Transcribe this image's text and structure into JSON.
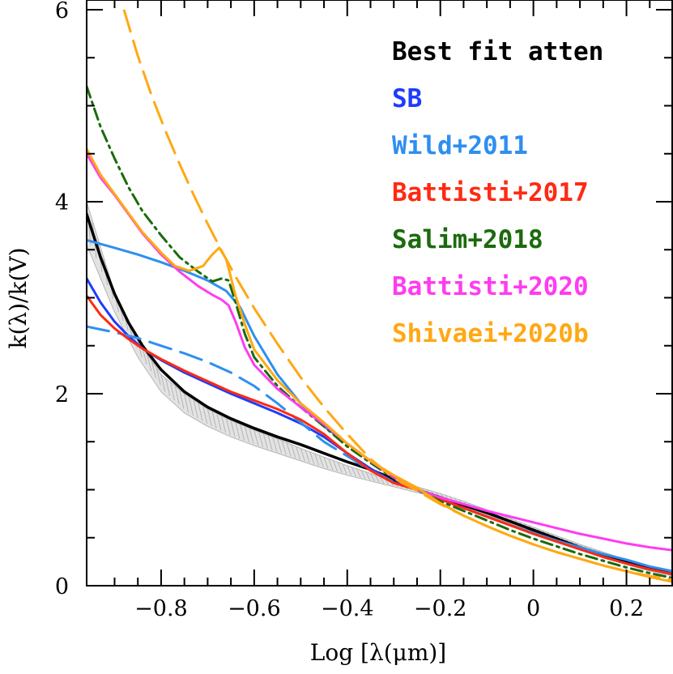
{
  "chart_data": {
    "type": "line",
    "title": "",
    "xlabel": "Log [λ(μm)]",
    "ylabel": "k(λ)/k(V)",
    "xlim": [
      -0.96,
      0.3
    ],
    "ylim": [
      0,
      6
    ],
    "x_ticks": [
      -0.8,
      -0.6,
      -0.4,
      -0.2,
      0,
      0.2
    ],
    "x_tick_labels": [
      "−0.8",
      "−0.6",
      "−0.4",
      "−0.2",
      "0",
      "0.2"
    ],
    "y_ticks": [
      0,
      2,
      4,
      6
    ],
    "y_tick_labels": [
      "0",
      "2",
      "4",
      "6"
    ],
    "legend_position": "top-right",
    "series": [
      {
        "name": "Best fit atten",
        "color": "#000000",
        "style": "solid",
        "band": {
          "color": "#b5b5b5",
          "x": [
            -0.96,
            -0.9,
            -0.85,
            -0.8,
            -0.75,
            -0.7,
            -0.65,
            -0.6,
            -0.55,
            -0.5,
            -0.45,
            -0.4,
            -0.35,
            -0.3,
            -0.25,
            -0.2,
            -0.15,
            -0.1,
            -0.05,
            0.0,
            0.05,
            0.1,
            0.15,
            0.2,
            0.25,
            0.3
          ],
          "lower": [
            3.55,
            2.85,
            2.38,
            2.02,
            1.8,
            1.66,
            1.55,
            1.46,
            1.38,
            1.3,
            1.22,
            1.15,
            1.09,
            1.03,
            0.97,
            0.91,
            0.83,
            0.74,
            0.65,
            0.55,
            0.46,
            0.38,
            0.3,
            0.22,
            0.15,
            0.1
          ],
          "upper": [
            4.0,
            3.05,
            2.55,
            2.2,
            2.0,
            1.84,
            1.72,
            1.62,
            1.53,
            1.43,
            1.34,
            1.25,
            1.17,
            1.09,
            1.03,
            0.96,
            0.88,
            0.79,
            0.7,
            0.61,
            0.52,
            0.43,
            0.35,
            0.27,
            0.2,
            0.15
          ]
        },
        "x": [
          -0.96,
          -0.93,
          -0.9,
          -0.87,
          -0.84,
          -0.8,
          -0.75,
          -0.7,
          -0.65,
          -0.6,
          -0.55,
          -0.5,
          -0.45,
          -0.4,
          -0.35,
          -0.3,
          -0.25,
          -0.2,
          -0.15,
          -0.1,
          -0.05,
          0.0,
          0.05,
          0.1,
          0.15,
          0.2,
          0.25,
          0.3
        ],
        "y": [
          3.87,
          3.42,
          3.04,
          2.74,
          2.5,
          2.25,
          2.02,
          1.86,
          1.74,
          1.64,
          1.55,
          1.47,
          1.38,
          1.29,
          1.21,
          1.11,
          1.0,
          0.92,
          0.84,
          0.76,
          0.67,
          0.58,
          0.49,
          0.4,
          0.32,
          0.25,
          0.18,
          0.12
        ]
      },
      {
        "name": "SB",
        "color": "#1f3bff",
        "style": "solid",
        "x": [
          -0.96,
          -0.93,
          -0.9,
          -0.87,
          -0.84,
          -0.8,
          -0.75,
          -0.7,
          -0.65,
          -0.6,
          -0.55,
          -0.5,
          -0.45,
          -0.4,
          -0.35,
          -0.3,
          -0.25,
          -0.2,
          -0.15,
          -0.1,
          -0.05,
          0.0,
          0.05,
          0.1,
          0.15,
          0.2,
          0.25,
          0.3
        ],
        "y": [
          3.2,
          2.95,
          2.75,
          2.6,
          2.47,
          2.35,
          2.22,
          2.11,
          2.0,
          1.9,
          1.8,
          1.69,
          1.55,
          1.38,
          1.22,
          1.08,
          1.0,
          0.9,
          0.81,
          0.72,
          0.63,
          0.54,
          0.46,
          0.38,
          0.3,
          0.23,
          0.17,
          0.12
        ]
      },
      {
        "name": "Wild+2011",
        "color": "#2e8ff0",
        "style": "solid",
        "x": [
          -0.96,
          -0.9,
          -0.85,
          -0.8,
          -0.75,
          -0.7,
          -0.66,
          -0.63,
          -0.6,
          -0.55,
          -0.5,
          -0.45,
          -0.4,
          -0.35,
          -0.3,
          -0.25,
          -0.2,
          -0.15,
          -0.1,
          -0.05,
          0.0,
          0.05,
          0.1,
          0.15,
          0.2,
          0.25,
          0.3
        ],
        "y": [
          3.6,
          3.52,
          3.45,
          3.37,
          3.28,
          3.18,
          3.07,
          2.9,
          2.6,
          2.2,
          1.9,
          1.66,
          1.48,
          1.3,
          1.14,
          1.0,
          0.9,
          0.81,
          0.72,
          0.63,
          0.55,
          0.47,
          0.4,
          0.33,
          0.27,
          0.2,
          0.15
        ]
      },
      {
        "name": "Wild+2011 (dashed)",
        "color": "#2e8ff0",
        "style": "dashed",
        "x": [
          -0.96,
          -0.9,
          -0.85,
          -0.8,
          -0.75,
          -0.7,
          -0.65,
          -0.6,
          -0.55,
          -0.5,
          -0.45,
          -0.4,
          -0.35,
          -0.3,
          -0.25
        ],
        "y": [
          2.7,
          2.64,
          2.58,
          2.5,
          2.42,
          2.33,
          2.22,
          2.08,
          1.9,
          1.7,
          1.5,
          1.35,
          1.2,
          1.08,
          1.0
        ]
      },
      {
        "name": "Battisti+2017",
        "color": "#ff2a12",
        "style": "solid",
        "x": [
          -0.96,
          -0.93,
          -0.9,
          -0.87,
          -0.84,
          -0.8,
          -0.75,
          -0.7,
          -0.65,
          -0.6,
          -0.55,
          -0.5,
          -0.45,
          -0.4,
          -0.35,
          -0.3,
          -0.25,
          -0.2,
          -0.15,
          -0.1,
          -0.05,
          0.0,
          0.05,
          0.1,
          0.15,
          0.2,
          0.25,
          0.3
        ],
        "y": [
          3.02,
          2.82,
          2.68,
          2.57,
          2.47,
          2.36,
          2.24,
          2.13,
          2.02,
          1.93,
          1.84,
          1.73,
          1.58,
          1.38,
          1.2,
          1.07,
          1.0,
          0.9,
          0.81,
          0.72,
          0.63,
          0.54,
          0.46,
          0.38,
          0.3,
          0.23,
          0.17,
          0.12
        ]
      },
      {
        "name": "Salim+2018",
        "color": "#1a6b0c",
        "style": "dashdot",
        "x": [
          -0.96,
          -0.93,
          -0.9,
          -0.87,
          -0.84,
          -0.8,
          -0.76,
          -0.72,
          -0.69,
          -0.67,
          -0.655,
          -0.64,
          -0.62,
          -0.6,
          -0.55,
          -0.5,
          -0.45,
          -0.4,
          -0.35,
          -0.3,
          -0.25,
          -0.2,
          -0.15,
          -0.1,
          -0.05,
          0.0,
          0.05,
          0.1,
          0.15,
          0.2,
          0.25,
          0.3
        ],
        "y": [
          5.2,
          4.78,
          4.45,
          4.15,
          3.9,
          3.65,
          3.42,
          3.27,
          3.17,
          3.2,
          3.18,
          2.95,
          2.62,
          2.38,
          2.08,
          1.86,
          1.66,
          1.45,
          1.28,
          1.12,
          1.0,
          0.88,
          0.78,
          0.68,
          0.58,
          0.49,
          0.41,
          0.33,
          0.26,
          0.19,
          0.13,
          0.08
        ]
      },
      {
        "name": "Battisti+2020",
        "color": "#ff3cf0",
        "style": "solid",
        "x": [
          -0.96,
          -0.93,
          -0.9,
          -0.87,
          -0.84,
          -0.8,
          -0.76,
          -0.72,
          -0.69,
          -0.67,
          -0.655,
          -0.64,
          -0.62,
          -0.6,
          -0.55,
          -0.5,
          -0.45,
          -0.4,
          -0.35,
          -0.3,
          -0.25,
          -0.2,
          -0.15,
          -0.1,
          -0.05,
          0.0,
          0.05,
          0.1,
          0.15,
          0.2,
          0.25,
          0.3
        ],
        "y": [
          4.5,
          4.25,
          4.07,
          3.87,
          3.67,
          3.45,
          3.27,
          3.12,
          3.03,
          2.98,
          2.92,
          2.75,
          2.48,
          2.3,
          2.05,
          1.86,
          1.68,
          1.48,
          1.3,
          1.13,
          1.0,
          0.92,
          0.85,
          0.78,
          0.72,
          0.66,
          0.6,
          0.54,
          0.49,
          0.44,
          0.4,
          0.37
        ]
      },
      {
        "name": "Shivaei+2020b",
        "color": "#ffa814",
        "style": "solid",
        "x": [
          -0.96,
          -0.93,
          -0.9,
          -0.87,
          -0.84,
          -0.8,
          -0.77,
          -0.74,
          -0.71,
          -0.69,
          -0.675,
          -0.66,
          -0.64,
          -0.62,
          -0.6,
          -0.55,
          -0.5,
          -0.45,
          -0.4,
          -0.35,
          -0.3,
          -0.25,
          -0.2,
          -0.15,
          -0.1,
          -0.05,
          0.0,
          0.05,
          0.1,
          0.15,
          0.2,
          0.25,
          0.3
        ],
        "y": [
          4.55,
          4.28,
          4.08,
          3.88,
          3.68,
          3.47,
          3.33,
          3.28,
          3.33,
          3.45,
          3.52,
          3.4,
          3.02,
          2.72,
          2.46,
          2.14,
          1.9,
          1.7,
          1.48,
          1.3,
          1.15,
          1.02,
          0.86,
          0.73,
          0.62,
          0.52,
          0.43,
          0.35,
          0.28,
          0.21,
          0.15,
          0.09,
          0.04
        ]
      },
      {
        "name": "Shivaei+2020b (dashed)",
        "color": "#ffa814",
        "style": "dashed",
        "x": [
          -0.88,
          -0.85,
          -0.82,
          -0.79,
          -0.76,
          -0.73,
          -0.7,
          -0.67,
          -0.64,
          -0.6,
          -0.55,
          -0.5,
          -0.45,
          -0.4,
          -0.35,
          -0.3,
          -0.25,
          -0.2,
          -0.15,
          -0.1,
          -0.05,
          0.0,
          0.05,
          0.1,
          0.15,
          0.2,
          0.25,
          0.3
        ],
        "y": [
          6.0,
          5.52,
          5.1,
          4.73,
          4.39,
          4.07,
          3.77,
          3.49,
          3.22,
          2.89,
          2.52,
          2.17,
          1.86,
          1.58,
          1.32,
          1.12,
          0.99,
          0.85,
          0.73,
          0.62,
          0.52,
          0.43,
          0.35,
          0.28,
          0.21,
          0.15,
          0.1,
          0.06
        ]
      }
    ],
    "legend": [
      {
        "label": "Best fit atten",
        "color": "#000000"
      },
      {
        "label": "SB",
        "color": "#1f3bff"
      },
      {
        "label": "Wild+2011",
        "color": "#2e8ff0"
      },
      {
        "label": "Battisti+2017",
        "color": "#ff2a12"
      },
      {
        "label": "Salim+2018",
        "color": "#1a6b0c"
      },
      {
        "label": "Battisti+2020",
        "color": "#ff3cf0"
      },
      {
        "label": "Shivaei+2020b",
        "color": "#ffa814"
      }
    ]
  }
}
